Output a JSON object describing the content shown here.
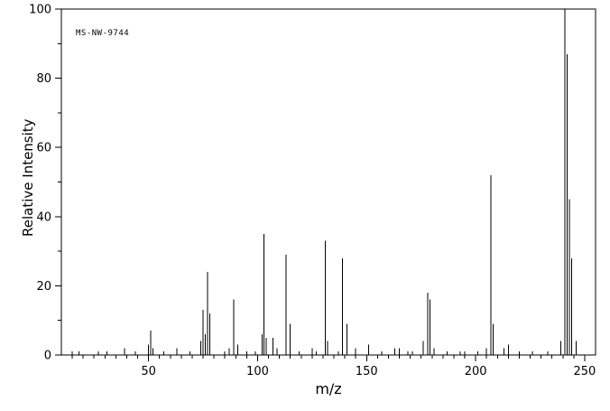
{
  "chart": {
    "label": "MS-NW-9744",
    "xlabel": "m/z",
    "ylabel": "Relative Intensity"
  },
  "chart_data": {
    "type": "bar",
    "title": "MS-NW-9744",
    "xlabel": "m/z",
    "ylabel": "Relative Intensity",
    "xlim": [
      10,
      255
    ],
    "ylim": [
      0,
      100
    ],
    "x_ticks": [
      50,
      100,
      150,
      200,
      250
    ],
    "y_ticks": [
      0,
      20,
      40,
      60,
      80,
      100
    ],
    "grid": false,
    "legend": false,
    "peaks": [
      [
        15,
        1
      ],
      [
        18,
        1
      ],
      [
        27,
        1
      ],
      [
        31,
        1
      ],
      [
        39,
        2
      ],
      [
        44,
        1
      ],
      [
        50,
        3
      ],
      [
        51,
        7
      ],
      [
        52,
        2
      ],
      [
        57,
        1
      ],
      [
        63,
        2
      ],
      [
        69,
        1
      ],
      [
        74,
        4
      ],
      [
        75,
        13
      ],
      [
        76,
        6
      ],
      [
        77,
        24
      ],
      [
        78,
        12
      ],
      [
        85,
        1
      ],
      [
        87,
        2
      ],
      [
        89,
        16
      ],
      [
        91,
        3
      ],
      [
        95,
        1
      ],
      [
        99,
        1
      ],
      [
        102,
        6
      ],
      [
        103,
        35
      ],
      [
        104,
        5
      ],
      [
        107,
        5
      ],
      [
        109,
        2
      ],
      [
        113,
        29
      ],
      [
        115,
        9
      ],
      [
        119,
        1
      ],
      [
        125,
        2
      ],
      [
        127,
        1
      ],
      [
        131,
        33
      ],
      [
        132,
        4
      ],
      [
        137,
        1
      ],
      [
        139,
        28
      ],
      [
        141,
        9
      ],
      [
        145,
        2
      ],
      [
        151,
        3
      ],
      [
        157,
        1
      ],
      [
        163,
        2
      ],
      [
        165,
        2
      ],
      [
        169,
        1
      ],
      [
        171,
        1
      ],
      [
        176,
        4
      ],
      [
        178,
        18
      ],
      [
        179,
        16
      ],
      [
        181,
        2
      ],
      [
        187,
        1
      ],
      [
        193,
        1
      ],
      [
        195,
        1
      ],
      [
        201,
        1
      ],
      [
        205,
        2
      ],
      [
        207,
        52
      ],
      [
        208,
        9
      ],
      [
        213,
        2
      ],
      [
        215,
        3
      ],
      [
        220,
        1
      ],
      [
        226,
        1
      ],
      [
        233,
        1
      ],
      [
        239,
        4
      ],
      [
        241,
        100
      ],
      [
        242,
        87
      ],
      [
        243,
        45
      ],
      [
        244,
        28
      ],
      [
        246,
        4
      ]
    ]
  }
}
